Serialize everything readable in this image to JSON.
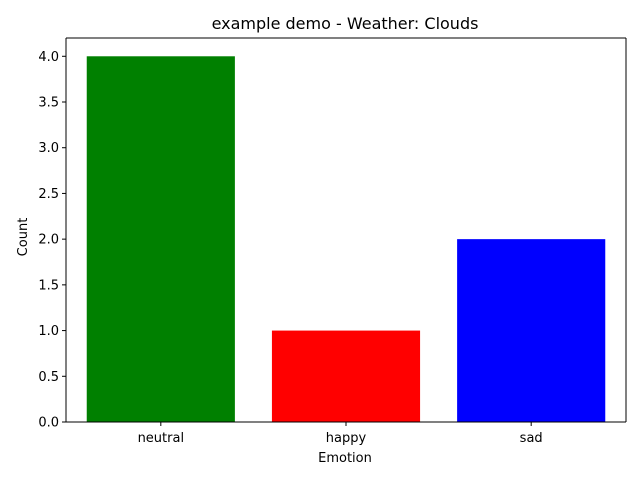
{
  "chart_data": {
    "type": "bar",
    "title": "example demo - Weather: Clouds",
    "xlabel": "Emotion",
    "ylabel": "Count",
    "categories": [
      "neutral",
      "happy",
      "sad"
    ],
    "values": [
      4,
      1,
      2
    ],
    "colors": [
      "#008000",
      "#ff0000",
      "#0000ff"
    ],
    "ylim": [
      0,
      4.2
    ],
    "yticks": [
      0.0,
      0.5,
      1.0,
      1.5,
      2.0,
      2.5,
      3.0,
      3.5,
      4.0
    ],
    "ytick_labels": [
      "0.0",
      "0.5",
      "1.0",
      "1.5",
      "2.0",
      "2.5",
      "3.0",
      "3.5",
      "4.0"
    ],
    "grid": false,
    "legend": "none"
  }
}
